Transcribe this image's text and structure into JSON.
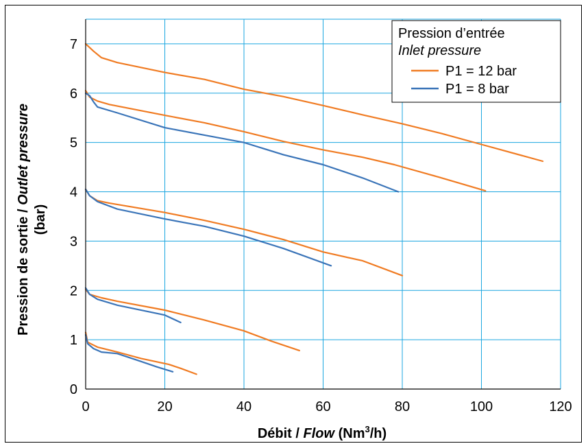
{
  "chart_data": {
    "type": "line",
    "title": "",
    "xlabel": {
      "prefix": "Débit / ",
      "italic": "Flow",
      "unit_before_sup": " (Nm",
      "sup": "3",
      "unit_after_sup": "/h)"
    },
    "ylabel": {
      "line1_prefix": "Pression de sortie / ",
      "line1_italic": "Outlet pressure",
      "line2": "(bar)"
    },
    "xlim": [
      0,
      120
    ],
    "ylim": [
      0,
      7.5
    ],
    "x_ticks": [
      "0",
      "20",
      "40",
      "60",
      "80",
      "100",
      "120"
    ],
    "y_ticks": [
      "0",
      "1",
      "2",
      "3",
      "4",
      "5",
      "6",
      "7"
    ],
    "grid": true,
    "legend": {
      "position": "top-right",
      "title_line1": "Pression d’entrée",
      "title_line2": "Inlet pressure",
      "entries": [
        {
          "label": "P1 = 12 bar",
          "color": "#f07b22"
        },
        {
          "label": "P1 = 8 bar",
          "color": "#3a74b8"
        }
      ]
    },
    "series": [
      {
        "group": "P1 = 12 bar",
        "color": "#f07b22",
        "points": [
          [
            0,
            7.0
          ],
          [
            2,
            6.85
          ],
          [
            4,
            6.72
          ],
          [
            8,
            6.62
          ],
          [
            20,
            6.42
          ],
          [
            30,
            6.28
          ],
          [
            40,
            6.08
          ],
          [
            50,
            5.93
          ],
          [
            60,
            5.75
          ],
          [
            70,
            5.56
          ],
          [
            80,
            5.38
          ],
          [
            90,
            5.18
          ],
          [
            100,
            4.96
          ],
          [
            115.5,
            4.62
          ]
        ]
      },
      {
        "group": "P1 = 12 bar",
        "color": "#f07b22",
        "points": [
          [
            0,
            6.05
          ],
          [
            1,
            5.92
          ],
          [
            3,
            5.84
          ],
          [
            6,
            5.77
          ],
          [
            20,
            5.55
          ],
          [
            30,
            5.4
          ],
          [
            40,
            5.22
          ],
          [
            50,
            5.02
          ],
          [
            60,
            4.85
          ],
          [
            70,
            4.7
          ],
          [
            78,
            4.55
          ],
          [
            90,
            4.28
          ],
          [
            101,
            4.02
          ]
        ]
      },
      {
        "group": "P1 = 12 bar",
        "color": "#f07b22",
        "points": [
          [
            0,
            4.05
          ],
          [
            1,
            3.92
          ],
          [
            3,
            3.82
          ],
          [
            6,
            3.77
          ],
          [
            20,
            3.58
          ],
          [
            30,
            3.42
          ],
          [
            40,
            3.24
          ],
          [
            50,
            3.03
          ],
          [
            60,
            2.78
          ],
          [
            70,
            2.6
          ],
          [
            80,
            2.3
          ]
        ]
      },
      {
        "group": "P1 = 12 bar",
        "color": "#f07b22",
        "points": [
          [
            0,
            2.02
          ],
          [
            1,
            1.92
          ],
          [
            4,
            1.85
          ],
          [
            8,
            1.78
          ],
          [
            20,
            1.6
          ],
          [
            30,
            1.4
          ],
          [
            40,
            1.18
          ],
          [
            47,
            0.97
          ],
          [
            54,
            0.78
          ]
        ]
      },
      {
        "group": "P1 = 12 bar",
        "color": "#f07b22",
        "points": [
          [
            0,
            1.15
          ],
          [
            0.5,
            0.95
          ],
          [
            3,
            0.85
          ],
          [
            8,
            0.75
          ],
          [
            14,
            0.62
          ],
          [
            21,
            0.5
          ],
          [
            24,
            0.42
          ],
          [
            28,
            0.3
          ]
        ]
      },
      {
        "group": "P1 = 8 bar",
        "color": "#3a74b8",
        "points": [
          [
            0,
            6.0
          ],
          [
            1,
            5.95
          ],
          [
            2,
            5.82
          ],
          [
            3,
            5.72
          ],
          [
            8,
            5.6
          ],
          [
            20,
            5.3
          ],
          [
            30,
            5.15
          ],
          [
            40,
            5.0
          ],
          [
            50,
            4.75
          ],
          [
            60,
            4.55
          ],
          [
            70,
            4.28
          ],
          [
            79,
            4.0
          ]
        ]
      },
      {
        "group": "P1 = 8 bar",
        "color": "#3a74b8",
        "points": [
          [
            0,
            4.05
          ],
          [
            1,
            3.92
          ],
          [
            3,
            3.8
          ],
          [
            8,
            3.65
          ],
          [
            20,
            3.45
          ],
          [
            30,
            3.3
          ],
          [
            40,
            3.1
          ],
          [
            50,
            2.85
          ],
          [
            62,
            2.5
          ]
        ]
      },
      {
        "group": "P1 = 8 bar",
        "color": "#3a74b8",
        "points": [
          [
            0,
            2.05
          ],
          [
            1,
            1.92
          ],
          [
            3,
            1.82
          ],
          [
            8,
            1.7
          ],
          [
            20,
            1.5
          ],
          [
            24,
            1.35
          ]
        ]
      },
      {
        "group": "P1 = 8 bar",
        "color": "#3a74b8",
        "points": [
          [
            0,
            1.1
          ],
          [
            0.5,
            0.92
          ],
          [
            2,
            0.82
          ],
          [
            4,
            0.75
          ],
          [
            8,
            0.72
          ],
          [
            14,
            0.56
          ],
          [
            18,
            0.45
          ],
          [
            22,
            0.35
          ]
        ]
      }
    ]
  }
}
